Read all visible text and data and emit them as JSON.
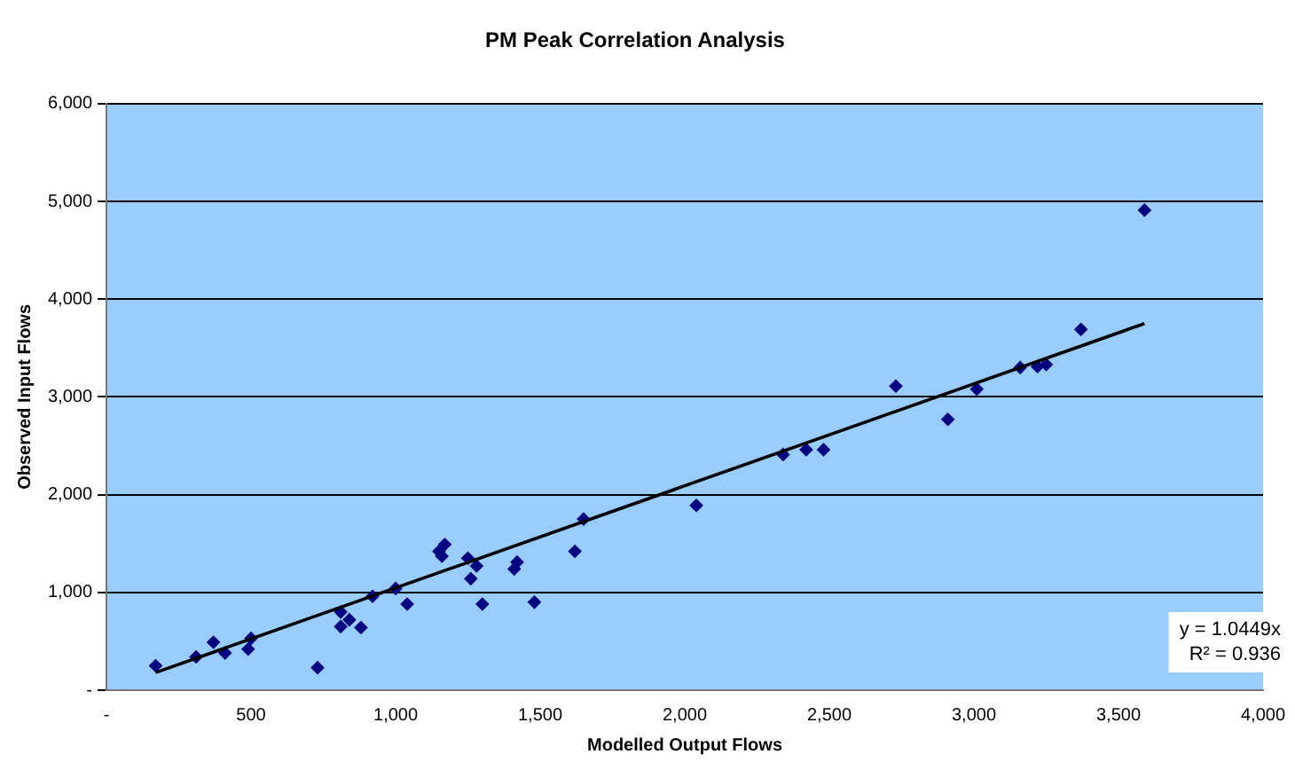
{
  "chart_data": {
    "type": "scatter",
    "title": "PM Peak Correlation Analysis",
    "xlabel": "Modelled Output Flows",
    "ylabel": "Observed Input Flows",
    "series": [
      {
        "color": "#000080",
        "x": [
          170,
          310,
          370,
          410,
          490,
          500,
          730,
          810,
          810,
          840,
          880,
          920,
          1000,
          1040,
          1150,
          1170,
          1160,
          1250,
          1280,
          1260,
          1300,
          1410,
          1420,
          1480,
          1620,
          1650,
          2040,
          2340,
          2420,
          2480,
          2730,
          2910,
          3010,
          3160,
          3220,
          3250,
          3370,
          3590
        ],
        "values": [
          250,
          340,
          490,
          380,
          420,
          530,
          230,
          800,
          650,
          720,
          640,
          960,
          1040,
          880,
          1420,
          1490,
          1370,
          1350,
          1270,
          1140,
          880,
          1240,
          1310,
          900,
          1420,
          1750,
          1890,
          2410,
          2460,
          2460,
          3110,
          2770,
          3080,
          3300,
          3310,
          3330,
          3690,
          4910
        ]
      },
      {
        "type": "line",
        "color": "#000000",
        "marker": "none",
        "x": [
          170,
          3590
        ],
        "values": [
          180,
          3750
        ]
      }
    ],
    "xlim": [
      0,
      4000
    ],
    "xticks": [
      {
        "value": 0,
        "label": "-"
      },
      {
        "value": 500,
        "label": "500"
      },
      {
        "value": 1000,
        "label": "1,000"
      },
      {
        "value": 1500,
        "label": "1,500"
      },
      {
        "value": 2000,
        "label": "2,000"
      },
      {
        "value": 2500,
        "label": "2,500"
      },
      {
        "value": 3000,
        "label": "3,000"
      },
      {
        "value": 3500,
        "label": "3,500"
      },
      {
        "value": 4000,
        "label": "4,000"
      }
    ],
    "ylim": [
      0,
      6000
    ],
    "yticks": [
      {
        "value": 0,
        "label": "-"
      },
      {
        "value": 1000,
        "label": "1,000"
      },
      {
        "value": 2000,
        "label": "2,000"
      },
      {
        "value": 3000,
        "label": "3,000"
      },
      {
        "value": 4000,
        "label": "4,000"
      },
      {
        "value": 5000,
        "label": "5,000"
      },
      {
        "value": 6000,
        "label": "6,000"
      }
    ],
    "annotations": [
      "y = 1.0449x",
      "R² = 0.936"
    ],
    "grid": "y",
    "legend": false,
    "marker": "diamond"
  }
}
